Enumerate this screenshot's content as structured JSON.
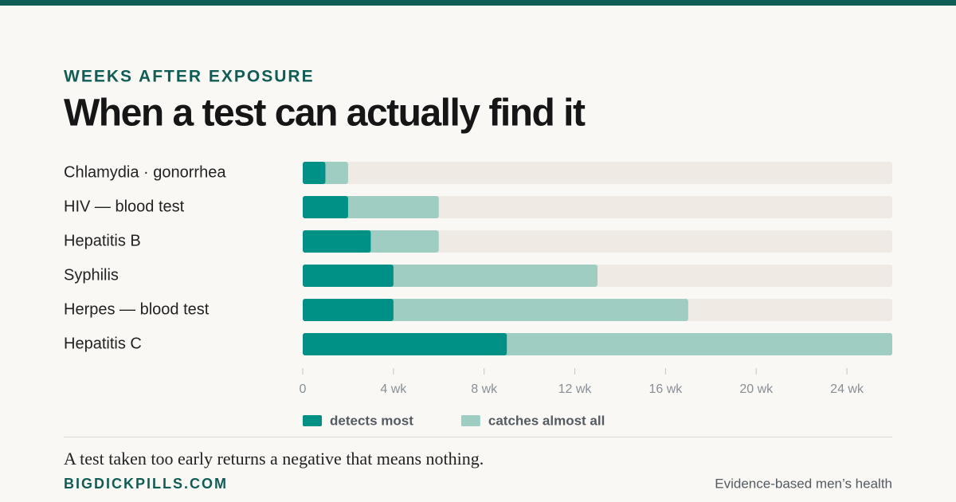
{
  "chart_data": {
    "type": "range-bar",
    "eyebrow": "WEEKS AFTER EXPOSURE",
    "title": "When a test can actually find it",
    "categories": [
      "Chlamydia · gonorrhea",
      "HIV — blood test",
      "Hepatitis B",
      "Syphilis",
      "Herpes — blood test",
      "Hepatitis C"
    ],
    "series": [
      {
        "name": "catches almost all",
        "color": "#9fcdc2",
        "values": [
          2,
          6,
          6,
          13,
          17,
          26
        ]
      },
      {
        "name": "detects most",
        "color": "#009186",
        "values": [
          1,
          2,
          3,
          4,
          4,
          9
        ]
      }
    ],
    "xlim": [
      0,
      26
    ],
    "xticks": [
      0,
      {
        "value": 4,
        "label": "4 wk"
      },
      {
        "value": 8,
        "label": "8 wk"
      },
      {
        "value": 12,
        "label": "12 wk"
      },
      {
        "value": 16,
        "label": "16 wk"
      },
      {
        "value": 20,
        "label": "20 wk"
      },
      {
        "value": 24,
        "label": "24 wk"
      }
    ],
    "track_color": "#efebe4",
    "legend_order": [
      1,
      0
    ],
    "footnote": "A test taken too early returns a negative that means nothing.",
    "brand": "BIGDICKPILLS.COM",
    "tagline": "Evidence-based men’s health"
  }
}
